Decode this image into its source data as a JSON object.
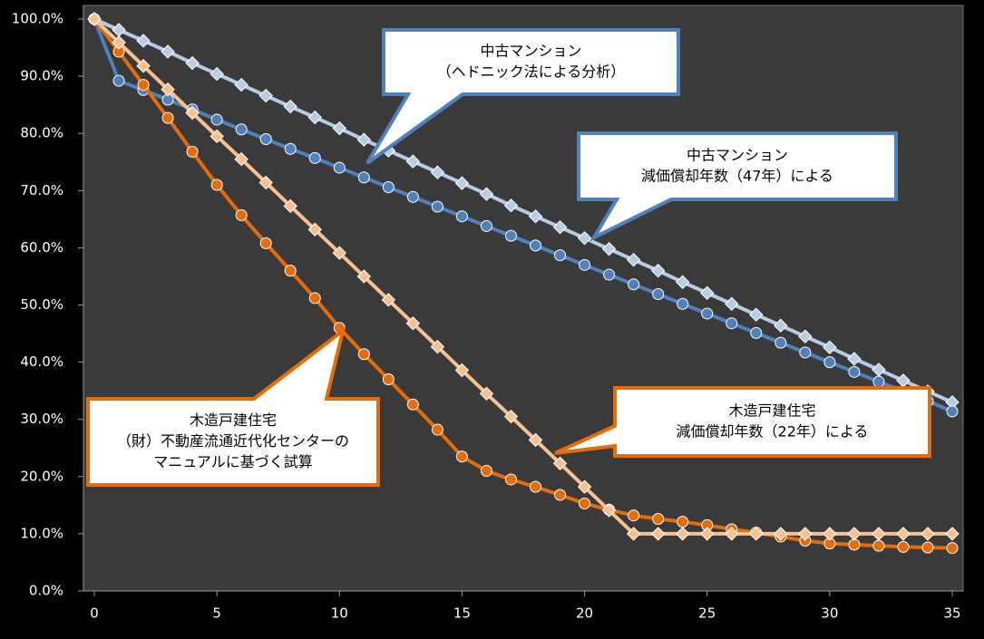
{
  "chart_data": {
    "type": "line",
    "x": [
      0,
      1,
      2,
      3,
      4,
      5,
      6,
      7,
      8,
      9,
      10,
      11,
      12,
      13,
      14,
      15,
      16,
      17,
      18,
      19,
      20,
      21,
      22,
      23,
      24,
      25,
      26,
      27,
      28,
      29,
      30,
      31,
      32,
      33,
      34,
      35
    ],
    "xlim": [
      0,
      35
    ],
    "xticks": [
      0,
      5,
      10,
      15,
      20,
      25,
      30,
      35
    ],
    "ylim": [
      0,
      100
    ],
    "yticks": [
      {
        "value": 0,
        "label": "0.0%"
      },
      {
        "value": 10,
        "label": "10.0%"
      },
      {
        "value": 20,
        "label": "20.0%"
      },
      {
        "value": 30,
        "label": "30.0%"
      },
      {
        "value": 40,
        "label": "40.0%"
      },
      {
        "value": 50,
        "label": "50.0%"
      },
      {
        "value": 60,
        "label": "60.0%"
      },
      {
        "value": 70,
        "label": "70.0%"
      },
      {
        "value": 80,
        "label": "80.0%"
      },
      {
        "value": 90,
        "label": "90.0%"
      },
      {
        "value": 100,
        "label": "100.0%"
      }
    ],
    "grid": false,
    "series": [
      {
        "color": "#b8cce4",
        "marker": "diamond",
        "values": [
          100,
          98.1,
          96.2,
          94.3,
          92.3,
          90.4,
          88.5,
          86.6,
          84.7,
          82.8,
          80.9,
          78.9,
          77.0,
          75.1,
          73.2,
          71.3,
          69.4,
          67.4,
          65.5,
          63.6,
          61.7,
          59.8,
          57.9,
          56.0,
          54.0,
          52.1,
          50.2,
          48.3,
          46.4,
          44.5,
          42.6,
          40.6,
          38.7,
          36.8,
          34.9,
          33.0
        ]
      },
      {
        "color": "#4f81bd",
        "marker": "circle",
        "values": [
          100,
          89.2,
          87.6,
          85.9,
          84.2,
          82.4,
          80.7,
          79.0,
          77.3,
          75.7,
          74.0,
          72.3,
          70.6,
          68.9,
          67.2,
          65.5,
          63.8,
          62.1,
          60.4,
          58.7,
          57.0,
          55.3,
          53.6,
          51.9,
          50.2,
          48.5,
          46.8,
          45.1,
          43.4,
          41.7,
          40.0,
          38.3,
          36.6,
          34.9,
          33.2,
          31.4
        ]
      },
      {
        "color": "#e46c0a",
        "marker": "circle",
        "values": [
          100,
          94.3,
          88.5,
          82.7,
          76.8,
          71.0,
          65.7,
          60.8,
          56.0,
          51.2,
          46.0,
          41.4,
          37.0,
          32.6,
          28.2,
          23.5,
          21.0,
          19.5,
          18.2,
          16.8,
          15.3,
          14.2,
          13.2,
          12.6,
          12.1,
          11.5,
          10.8,
          10.2,
          9.5,
          8.8,
          8.3,
          8.1,
          7.9,
          7.7,
          7.6,
          7.5
        ]
      },
      {
        "color": "#fac090",
        "marker": "diamond",
        "values": [
          100,
          95.9,
          91.8,
          87.7,
          83.6,
          79.5,
          75.5,
          71.4,
          67.3,
          63.2,
          59.1,
          55.0,
          50.9,
          46.8,
          42.7,
          38.6,
          34.5,
          30.5,
          26.4,
          22.3,
          18.2,
          14.1,
          10,
          10,
          10,
          10,
          10,
          10,
          10,
          10,
          10,
          10,
          10,
          10,
          10,
          10
        ]
      }
    ],
    "annotations": [
      {
        "color": "#4f81bd",
        "lines": [
          "中古マンション",
          "（ヘドニック法による分析）"
        ]
      },
      {
        "color": "#4f81bd",
        "lines": [
          "中古マンション",
          "減価償却年数（47年）による"
        ]
      },
      {
        "color": "#e46c0a",
        "lines": [
          "木造戸建住宅",
          "（財）不動産流通近代化センターの",
          "マニュアルに基づく試算"
        ]
      },
      {
        "color": "#e46c0a",
        "lines": [
          "木造戸建住宅",
          "減価償却年数（22年）による"
        ]
      }
    ]
  }
}
